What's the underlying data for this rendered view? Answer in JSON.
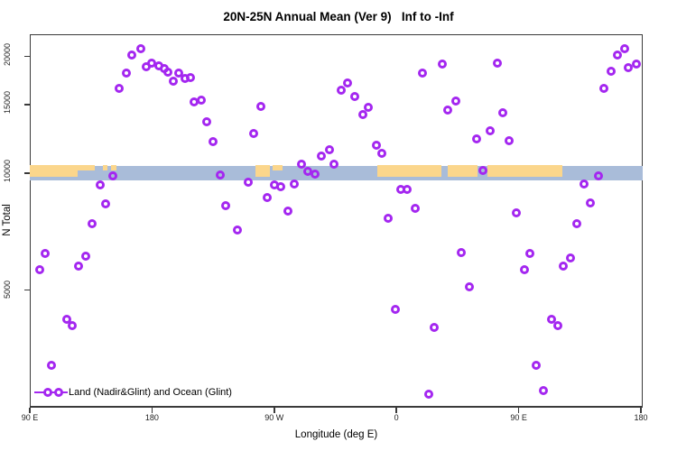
{
  "title": "20N-25N Annual Mean (Ver 9)   Inf to -Inf",
  "x_axis": {
    "label": "Longitude (deg E)",
    "ticks": [
      {
        "deg": 90,
        "label": "90 E"
      },
      {
        "deg": 180,
        "label": "180"
      },
      {
        "deg": 270,
        "label": "90 W"
      },
      {
        "deg": 360,
        "label": "0"
      },
      {
        "deg": 450,
        "label": "90 E"
      },
      {
        "deg": 540,
        "label": "180"
      }
    ]
  },
  "y_axis": {
    "label": "N Total",
    "scale": "log10",
    "ticks": [
      5000,
      10000,
      15000,
      20000
    ],
    "visible_range": [
      2460,
      22900
    ]
  },
  "legend": {
    "label": "Land (Nadir&Glint) and Ocean (Glint)"
  },
  "colors": {
    "marker": "#a427f0",
    "land": "#fbd68c",
    "ocean": "#a9bcd9",
    "frame": "#3a3a3a"
  },
  "chart_data": {
    "type": "scatter",
    "title": "20N-25N Annual Mean (Ver 9)   Inf to -Inf",
    "xlabel": "Longitude (deg E)",
    "ylabel": "N Total",
    "x_deg_range": [
      90,
      540
    ],
    "y_log_range": [
      2460,
      22900
    ],
    "marker": "open-circle",
    "points_lon_ntotal": [
      [
        165,
        20200
      ],
      [
        172,
        20900
      ],
      [
        161,
        18100
      ],
      [
        156,
        16500
      ],
      [
        176,
        18800
      ],
      [
        180,
        19200
      ],
      [
        185,
        18900
      ],
      [
        189,
        18600
      ],
      [
        192,
        18200
      ],
      [
        196,
        17300
      ],
      [
        200,
        18100
      ],
      [
        204,
        17550
      ],
      [
        208,
        17650
      ],
      [
        211,
        15300
      ],
      [
        216,
        15450
      ],
      [
        220,
        13600
      ],
      [
        225,
        12050
      ],
      [
        151,
        9850
      ],
      [
        142,
        9350
      ],
      [
        146,
        8350
      ],
      [
        136,
        7400
      ],
      [
        101,
        6200
      ],
      [
        97,
        5650
      ],
      [
        131,
        6100
      ],
      [
        126,
        5750
      ],
      [
        230,
        9900
      ],
      [
        234,
        8250
      ],
      [
        243,
        7150
      ],
      [
        117,
        4200
      ],
      [
        121,
        4050
      ],
      [
        106,
        3200
      ],
      [
        260,
        14850
      ],
      [
        255,
        12650
      ],
      [
        319,
        16350
      ],
      [
        324,
        17100
      ],
      [
        329,
        15800
      ],
      [
        335,
        14150
      ],
      [
        339,
        14800
      ],
      [
        379,
        18100
      ],
      [
        394,
        19100
      ],
      [
        345,
        11800
      ],
      [
        349,
        11250
      ],
      [
        311,
        11500
      ],
      [
        305,
        11100
      ],
      [
        314,
        10550
      ],
      [
        290,
        10550
      ],
      [
        295,
        10100
      ],
      [
        300,
        9950
      ],
      [
        251,
        9500
      ],
      [
        270,
        9350
      ],
      [
        275,
        9230
      ],
      [
        285,
        9400
      ],
      [
        265,
        8650
      ],
      [
        280,
        8000
      ],
      [
        363,
        9100
      ],
      [
        368,
        9100
      ],
      [
        374,
        8100
      ],
      [
        354,
        7650
      ],
      [
        359,
        4450
      ],
      [
        388,
        4000
      ],
      [
        384,
        2700
      ],
      [
        434,
        19200
      ],
      [
        404,
        15350
      ],
      [
        398,
        14550
      ],
      [
        438,
        14300
      ],
      [
        429,
        12850
      ],
      [
        419,
        12250
      ],
      [
        443,
        12150
      ],
      [
        513,
        16550
      ],
      [
        518,
        18300
      ],
      [
        523,
        20200
      ],
      [
        528,
        20900
      ],
      [
        531,
        18700
      ],
      [
        537,
        19100
      ],
      [
        424,
        10150
      ],
      [
        509,
        9850
      ],
      [
        498,
        9400
      ],
      [
        503,
        8400
      ],
      [
        493,
        7400
      ],
      [
        448,
        7900
      ],
      [
        408,
        6250
      ],
      [
        458,
        6200
      ],
      [
        454,
        5650
      ],
      [
        488,
        6050
      ],
      [
        483,
        5750
      ],
      [
        414,
        5100
      ],
      [
        474,
        4200
      ],
      [
        479,
        4050
      ],
      [
        463,
        3200
      ],
      [
        468,
        2750
      ]
    ],
    "map_band": {
      "center_value": 10000,
      "ocean_deg": [
        90,
        540
      ],
      "land_segments_deg": [
        {
          "from": 90,
          "to": 125,
          "height": "full"
        },
        {
          "from": 125,
          "to": 138,
          "height": "thin"
        },
        {
          "from": 144,
          "to": 147,
          "height": "thin"
        },
        {
          "from": 150,
          "to": 154,
          "height": "thin"
        },
        {
          "from": 256,
          "to": 267,
          "height": "full"
        },
        {
          "from": 269,
          "to": 276,
          "height": "thin"
        },
        {
          "from": 346,
          "to": 393,
          "height": "full"
        },
        {
          "from": 398,
          "to": 420,
          "height": "full"
        },
        {
          "from": 427,
          "to": 482,
          "height": "full"
        }
      ]
    }
  }
}
